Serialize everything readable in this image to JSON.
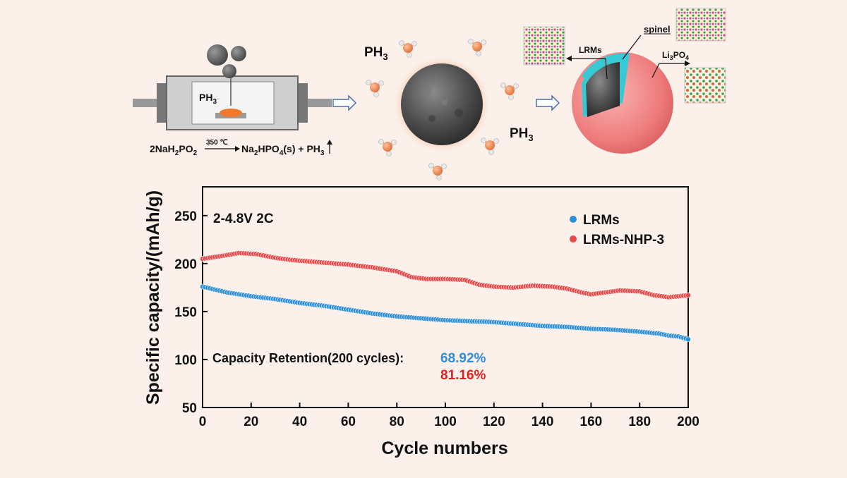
{
  "schematic": {
    "reaction": {
      "reactant": "2NaH",
      "reactant_sub": "2",
      "reactant_tail": "PO",
      "reactant_sub2": "2",
      "condition": "350 ℃",
      "product": "Na",
      "product_sub": "2",
      "product_mid": "HPO",
      "product_sub2": "4",
      "product_tail": "(s)  + PH",
      "product_sub3": "3"
    },
    "reactor_gas_label": "PH",
    "reactor_gas_sub": "3",
    "gas_label_1": "PH",
    "gas_label_1_sub": "3",
    "gas_label_2": "PH",
    "gas_label_2_sub": "3",
    "particle_labels": {
      "spinel": "spinel",
      "lrms": "LRMs",
      "li3po4": "Li",
      "li3po4_sub": "3",
      "li3po4_tail": "PO",
      "li3po4_sub2": "4"
    },
    "colors": {
      "shell": "#f07f7f",
      "core": "#555555",
      "spinel": "#38c9d4",
      "phosphorus": "#f08c55"
    }
  },
  "chart_data": {
    "type": "scatter",
    "xlabel": "Cycle numbers",
    "ylabel": "Specific capacity/(mAh/g)",
    "xlim": [
      0,
      200
    ],
    "ylim": [
      50,
      280
    ],
    "xticks": [
      "0",
      "20",
      "40",
      "60",
      "80",
      "100",
      "120",
      "140",
      "160",
      "180",
      "200"
    ],
    "yticks": [
      "50",
      "100",
      "150",
      "200",
      "250"
    ],
    "annotation_condition": "2-4.8V 2C",
    "annotation_retention": "Capacity Retention(200 cycles):",
    "retention_lrms": "68.92%",
    "retention_nhp": "81.16%",
    "series": [
      {
        "name": "LRMs",
        "color": "#2f8fd6",
        "anchors": [
          [
            0,
            176
          ],
          [
            10,
            170
          ],
          [
            20,
            166
          ],
          [
            30,
            163
          ],
          [
            40,
            159
          ],
          [
            50,
            156
          ],
          [
            60,
            152
          ],
          [
            70,
            148
          ],
          [
            80,
            145
          ],
          [
            90,
            143
          ],
          [
            100,
            141
          ],
          [
            110,
            140
          ],
          [
            120,
            139
          ],
          [
            130,
            137
          ],
          [
            140,
            135
          ],
          [
            150,
            134
          ],
          [
            160,
            132
          ],
          [
            170,
            131
          ],
          [
            180,
            129
          ],
          [
            188,
            127
          ],
          [
            192,
            125
          ],
          [
            196,
            124
          ],
          [
            200,
            121
          ]
        ]
      },
      {
        "name": "LRMs-NHP-3",
        "color": "#e84a4a",
        "anchors": [
          [
            0,
            205
          ],
          [
            8,
            208
          ],
          [
            15,
            211
          ],
          [
            22,
            210
          ],
          [
            30,
            206
          ],
          [
            36,
            204
          ],
          [
            40,
            203
          ],
          [
            50,
            201
          ],
          [
            60,
            199
          ],
          [
            70,
            196
          ],
          [
            80,
            192
          ],
          [
            86,
            186
          ],
          [
            92,
            184
          ],
          [
            100,
            184
          ],
          [
            108,
            183
          ],
          [
            114,
            178
          ],
          [
            120,
            176
          ],
          [
            128,
            175
          ],
          [
            136,
            177
          ],
          [
            144,
            176
          ],
          [
            150,
            174
          ],
          [
            156,
            170
          ],
          [
            160,
            168
          ],
          [
            166,
            170
          ],
          [
            172,
            172
          ],
          [
            180,
            171
          ],
          [
            186,
            167
          ],
          [
            192,
            165
          ],
          [
            200,
            167
          ]
        ]
      }
    ]
  }
}
